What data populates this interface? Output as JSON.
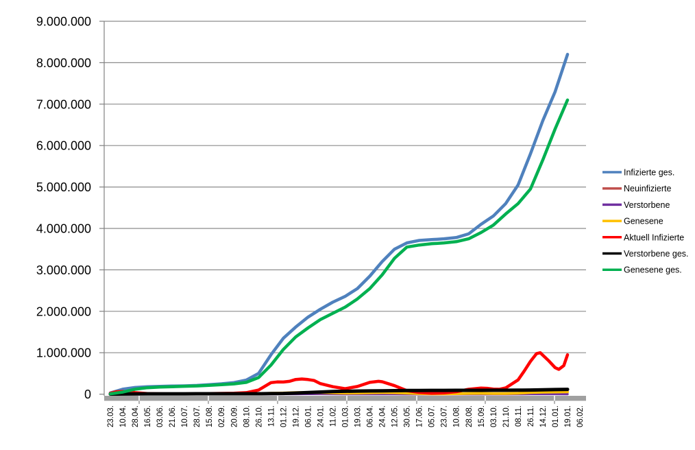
{
  "chart_data": {
    "type": "line",
    "title": "",
    "xlabel": "",
    "ylabel": "",
    "ylim": [
      0,
      9000000
    ],
    "y_tick_step": 1000000,
    "y_tick_labels": [
      "0",
      "1.000.000",
      "2.000.000",
      "3.000.000",
      "4.000.000",
      "5.000.000",
      "6.000.000",
      "7.000.000",
      "8.000.000",
      "9.000.000"
    ],
    "grid": true,
    "legend_position": "right",
    "x_labels": [
      "23.03.",
      "10.04.",
      "28.04.",
      "16.05.",
      "03.06.",
      "21.06.",
      "10.07.",
      "28.07.",
      "15.08.",
      "02.09.",
      "20.09.",
      "08.10.",
      "26.10.",
      "13.11.",
      "01.12.",
      "19.12.",
      "06.01.",
      "24.01.",
      "11.02.",
      "01.03.",
      "19.03.",
      "06.04.",
      "24.04.",
      "12.05.",
      "30.05.",
      "17.06.",
      "05.07.",
      "23.07.",
      "10.08.",
      "28.08.",
      "15.09.",
      "03.10.",
      "21.10.",
      "08.11.",
      "26.11.",
      "14.12.",
      "01.01.",
      "19.01.",
      "06.02."
    ],
    "series": [
      {
        "name": "Infizierte ges.",
        "color": "#4F81BD",
        "points": [
          [
            0,
            30000
          ],
          [
            1,
            120000
          ],
          [
            2,
            160000
          ],
          [
            3,
            178000
          ],
          [
            4,
            188000
          ],
          [
            5,
            195000
          ],
          [
            6,
            200000
          ],
          [
            7,
            210000
          ],
          [
            8,
            228000
          ],
          [
            9,
            250000
          ],
          [
            10,
            280000
          ],
          [
            11,
            340000
          ],
          [
            12,
            500000
          ],
          [
            13,
            950000
          ],
          [
            14,
            1350000
          ],
          [
            15,
            1620000
          ],
          [
            16,
            1860000
          ],
          [
            17,
            2050000
          ],
          [
            18,
            2220000
          ],
          [
            19,
            2360000
          ],
          [
            20,
            2550000
          ],
          [
            21,
            2850000
          ],
          [
            22,
            3200000
          ],
          [
            23,
            3500000
          ],
          [
            24,
            3650000
          ],
          [
            25,
            3710000
          ],
          [
            26,
            3730000
          ],
          [
            27,
            3750000
          ],
          [
            28,
            3780000
          ],
          [
            29,
            3870000
          ],
          [
            30,
            4100000
          ],
          [
            31,
            4300000
          ],
          [
            32,
            4600000
          ],
          [
            33,
            5050000
          ],
          [
            34,
            5800000
          ],
          [
            35,
            6600000
          ],
          [
            36,
            7300000
          ],
          [
            37,
            8200000
          ]
        ]
      },
      {
        "name": "Neuinfizierte",
        "color": "#C0504D",
        "points": [
          [
            0,
            4000
          ],
          [
            1,
            5000
          ],
          [
            2,
            2000
          ],
          [
            3,
            1000
          ],
          [
            4,
            500
          ],
          [
            5,
            400
          ],
          [
            6,
            400
          ],
          [
            7,
            500
          ],
          [
            8,
            1000
          ],
          [
            9,
            1500
          ],
          [
            10,
            2000
          ],
          [
            11,
            4000
          ],
          [
            12,
            11000
          ],
          [
            13,
            19000
          ],
          [
            14,
            18000
          ],
          [
            15,
            25000
          ],
          [
            16,
            22000
          ],
          [
            17,
            15000
          ],
          [
            18,
            8000
          ],
          [
            19,
            8000
          ],
          [
            20,
            14000
          ],
          [
            21,
            20000
          ],
          [
            22,
            23000
          ],
          [
            23,
            14000
          ],
          [
            24,
            6000
          ],
          [
            25,
            2000
          ],
          [
            26,
            1000
          ],
          [
            27,
            2000
          ],
          [
            28,
            5000
          ],
          [
            29,
            10000
          ],
          [
            30,
            11000
          ],
          [
            31,
            8000
          ],
          [
            32,
            10000
          ],
          [
            33,
            25000
          ],
          [
            34,
            50000
          ],
          [
            35,
            55000
          ],
          [
            36,
            45000
          ],
          [
            37,
            55000
          ]
        ]
      },
      {
        "name": "Verstorbene",
        "color": "#7030A0",
        "points": [
          [
            0,
            200
          ],
          [
            1,
            1500
          ],
          [
            2,
            1200
          ],
          [
            3,
            600
          ],
          [
            4,
            300
          ],
          [
            5,
            200
          ],
          [
            6,
            100
          ],
          [
            7,
            100
          ],
          [
            8,
            100
          ],
          [
            9,
            100
          ],
          [
            10,
            200
          ],
          [
            11,
            200
          ],
          [
            12,
            500
          ],
          [
            13,
            1500
          ],
          [
            14,
            2500
          ],
          [
            15,
            4000
          ],
          [
            16,
            5500
          ],
          [
            17,
            5000
          ],
          [
            18,
            3500
          ],
          [
            19,
            2000
          ],
          [
            20,
            1500
          ],
          [
            21,
            1500
          ],
          [
            22,
            1500
          ],
          [
            23,
            1200
          ],
          [
            24,
            800
          ],
          [
            25,
            400
          ],
          [
            26,
            200
          ],
          [
            27,
            200
          ],
          [
            28,
            300
          ],
          [
            29,
            400
          ],
          [
            30,
            500
          ],
          [
            31,
            600
          ],
          [
            32,
            800
          ],
          [
            33,
            1500
          ],
          [
            34,
            2500
          ],
          [
            35,
            3000
          ],
          [
            36,
            2500
          ],
          [
            37,
            2000
          ]
        ]
      },
      {
        "name": "Genesene",
        "color": "#FFC000",
        "points": [
          [
            0,
            1000
          ],
          [
            1,
            3000
          ],
          [
            2,
            4000
          ],
          [
            3,
            3000
          ],
          [
            4,
            2000
          ],
          [
            5,
            1000
          ],
          [
            6,
            1000
          ],
          [
            7,
            1000
          ],
          [
            8,
            2000
          ],
          [
            9,
            2000
          ],
          [
            10,
            3000
          ],
          [
            11,
            5000
          ],
          [
            12,
            10000
          ],
          [
            13,
            22000
          ],
          [
            14,
            28000
          ],
          [
            15,
            38000
          ],
          [
            16,
            40000
          ],
          [
            17,
            38000
          ],
          [
            18,
            30000
          ],
          [
            19,
            25000
          ],
          [
            20,
            27000
          ],
          [
            21,
            33000
          ],
          [
            22,
            36000
          ],
          [
            23,
            35000
          ],
          [
            24,
            25000
          ],
          [
            25,
            12000
          ],
          [
            26,
            6000
          ],
          [
            27,
            6000
          ],
          [
            28,
            10000
          ],
          [
            29,
            16000
          ],
          [
            30,
            18000
          ],
          [
            31,
            15000
          ],
          [
            32,
            14000
          ],
          [
            33,
            22000
          ],
          [
            34,
            38000
          ],
          [
            35,
            48000
          ],
          [
            36,
            52000
          ],
          [
            37,
            55000
          ]
        ]
      },
      {
        "name": "Aktuell Infizierte",
        "color": "#FF0000",
        "points": [
          [
            0,
            22000
          ],
          [
            0.5,
            58000
          ],
          [
            1,
            64000
          ],
          [
            1.5,
            52000
          ],
          [
            2,
            36000
          ],
          [
            3,
            15000
          ],
          [
            4,
            9000
          ],
          [
            5,
            6000
          ],
          [
            6,
            6000
          ],
          [
            7,
            9000
          ],
          [
            8,
            14000
          ],
          [
            9,
            19000
          ],
          [
            10,
            24000
          ],
          [
            11,
            36000
          ],
          [
            12,
            99000
          ],
          [
            13,
            278000
          ],
          [
            13.5,
            295000
          ],
          [
            14,
            293000
          ],
          [
            14.5,
            310000
          ],
          [
            15,
            355000
          ],
          [
            15.5,
            366000
          ],
          [
            16,
            352000
          ],
          [
            16.5,
            330000
          ],
          [
            17,
            255000
          ],
          [
            18,
            180000
          ],
          [
            19,
            132000
          ],
          [
            20,
            185000
          ],
          [
            21,
            285000
          ],
          [
            21.7,
            310000
          ],
          [
            22,
            300000
          ],
          [
            23,
            205000
          ],
          [
            24,
            85000
          ],
          [
            25,
            42000
          ],
          [
            26,
            21000
          ],
          [
            27,
            29000
          ],
          [
            28,
            60000
          ],
          [
            29,
            118000
          ],
          [
            30,
            148000
          ],
          [
            30.5,
            140000
          ],
          [
            31,
            123000
          ],
          [
            31.5,
            118000
          ],
          [
            32,
            150000
          ],
          [
            33,
            345000
          ],
          [
            33.5,
            560000
          ],
          [
            34,
            790000
          ],
          [
            34.5,
            980000
          ],
          [
            34.8,
            1000000
          ],
          [
            35,
            940000
          ],
          [
            35.5,
            800000
          ],
          [
            36,
            640000
          ],
          [
            36.3,
            600000
          ],
          [
            36.7,
            690000
          ],
          [
            37,
            950000
          ]
        ]
      },
      {
        "name": "Verstorbene ges.",
        "color": "#000000",
        "points": [
          [
            0,
            1000
          ],
          [
            1,
            3000
          ],
          [
            2,
            6000
          ],
          [
            3,
            8000
          ],
          [
            4,
            8600
          ],
          [
            5,
            8900
          ],
          [
            6,
            9100
          ],
          [
            7,
            9200
          ],
          [
            8,
            9300
          ],
          [
            9,
            9400
          ],
          [
            10,
            9500
          ],
          [
            11,
            9700
          ],
          [
            12,
            10200
          ],
          [
            13,
            12500
          ],
          [
            14,
            17000
          ],
          [
            15,
            26500
          ],
          [
            16,
            38000
          ],
          [
            17,
            52000
          ],
          [
            18,
            63000
          ],
          [
            19,
            70000
          ],
          [
            20,
            74500
          ],
          [
            21,
            77500
          ],
          [
            22,
            81000
          ],
          [
            23,
            85000
          ],
          [
            24,
            88000
          ],
          [
            25,
            90000
          ],
          [
            26,
            91000
          ],
          [
            27,
            91600
          ],
          [
            28,
            91900
          ],
          [
            29,
            92200
          ],
          [
            30,
            92800
          ],
          [
            31,
            93800
          ],
          [
            32,
            95000
          ],
          [
            33,
            96500
          ],
          [
            34,
            100000
          ],
          [
            35,
            106000
          ],
          [
            36,
            111000
          ],
          [
            37,
            116000
          ]
        ]
      },
      {
        "name": "Genesene ges.",
        "color": "#00B050",
        "points": [
          [
            0,
            8000
          ],
          [
            1,
            50000
          ],
          [
            2,
            120000
          ],
          [
            3,
            155000
          ],
          [
            4,
            170000
          ],
          [
            5,
            180000
          ],
          [
            6,
            190000
          ],
          [
            7,
            198000
          ],
          [
            8,
            212000
          ],
          [
            9,
            228000
          ],
          [
            10,
            248000
          ],
          [
            11,
            285000
          ],
          [
            12,
            400000
          ],
          [
            13,
            700000
          ],
          [
            14,
            1080000
          ],
          [
            15,
            1380000
          ],
          [
            16,
            1600000
          ],
          [
            17,
            1800000
          ],
          [
            18,
            1950000
          ],
          [
            19,
            2100000
          ],
          [
            20,
            2300000
          ],
          [
            21,
            2550000
          ],
          [
            22,
            2880000
          ],
          [
            23,
            3280000
          ],
          [
            24,
            3550000
          ],
          [
            25,
            3600000
          ],
          [
            26,
            3630000
          ],
          [
            27,
            3650000
          ],
          [
            28,
            3680000
          ],
          [
            29,
            3750000
          ],
          [
            30,
            3900000
          ],
          [
            31,
            4080000
          ],
          [
            32,
            4350000
          ],
          [
            33,
            4600000
          ],
          [
            34,
            4950000
          ],
          [
            35,
            5650000
          ],
          [
            36,
            6400000
          ],
          [
            37,
            7100000
          ]
        ]
      }
    ],
    "axis_colors": {
      "gridline": "#8C8C8C",
      "axis_line": "#808080",
      "x_axis_band": "#A0A0A0",
      "tick_slit": "#FFFFFF",
      "label_text": "#000000"
    }
  }
}
